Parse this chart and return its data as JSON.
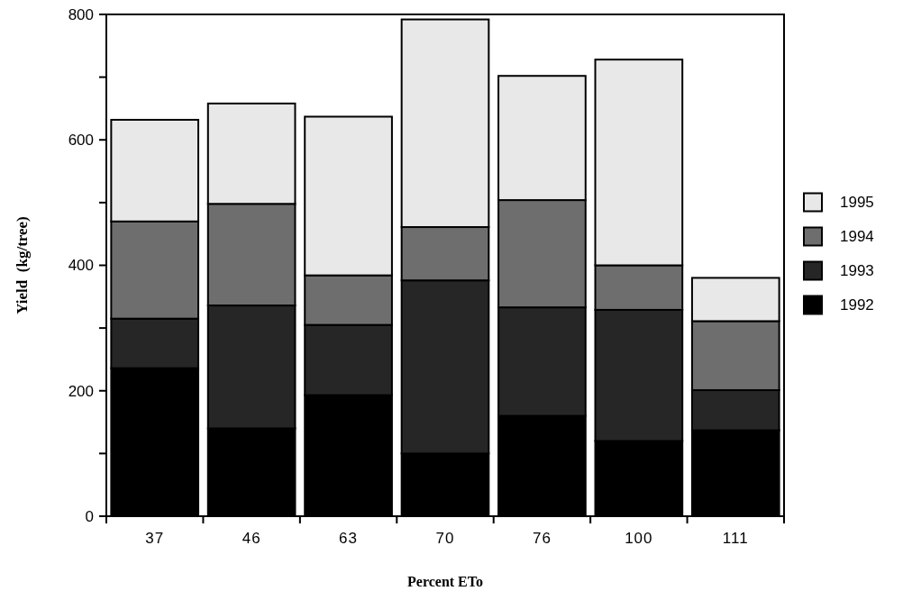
{
  "chart_data": {
    "type": "bar",
    "stacked": true,
    "xlabel": "Percent ETo",
    "ylabel": "Yield  (kg/tree)",
    "categories": [
      "37",
      "46",
      "63",
      "70",
      "76",
      "100",
      "111"
    ],
    "series": [
      {
        "name": "1992",
        "color": "#000000",
        "values": [
          236,
          140,
          193,
          100,
          160,
          120,
          137
        ]
      },
      {
        "name": "1993",
        "color": "#262626",
        "values": [
          79,
          196,
          112,
          276,
          173,
          209,
          64
        ]
      },
      {
        "name": "1994",
        "color": "#6e6e6e",
        "values": [
          155,
          162,
          79,
          85,
          171,
          71,
          110
        ]
      },
      {
        "name": "1995",
        "color": "#e8e8e8",
        "values": [
          162,
          160,
          253,
          331,
          198,
          328,
          69
        ]
      }
    ],
    "ylim": [
      0,
      800
    ],
    "yticks": [
      0,
      {
        "value": 100,
        "label": null
      },
      200,
      {
        "value": 300,
        "label": null
      },
      400,
      {
        "value": 500,
        "label": null
      },
      600,
      {
        "value": 700,
        "label": null
      },
      800
    ],
    "legend": "right"
  }
}
